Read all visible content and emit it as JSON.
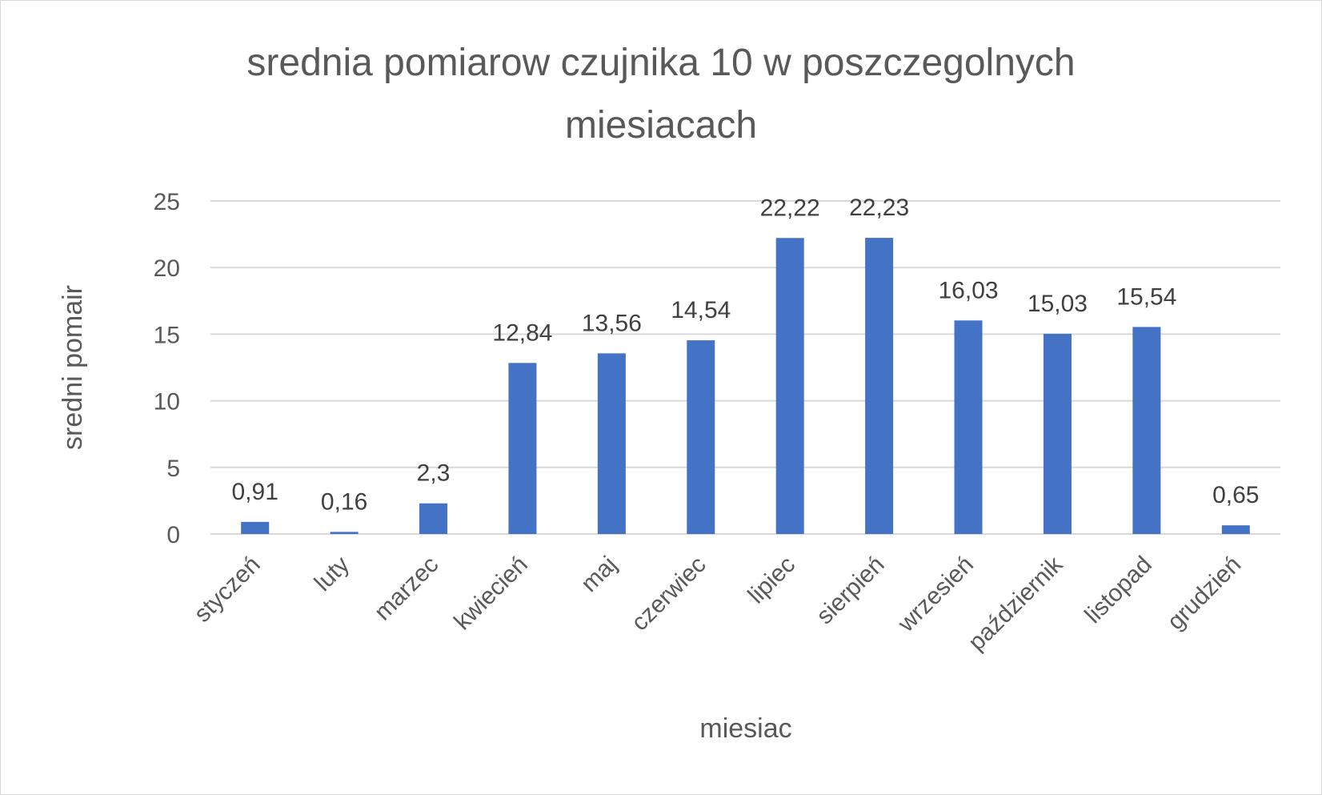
{
  "chart_data": {
    "type": "bar",
    "title": "srednia pomiarow czujnika 10 w poszczegolnych miesiacach",
    "title_lines": [
      "srednia pomiarow czujnika 10 w poszczegolnych",
      "miesiacach"
    ],
    "xlabel": "miesiac",
    "ylabel": "sredni pomair",
    "categories": [
      "styczeń",
      "luty",
      "marzec",
      "kwiecień",
      "maj",
      "czerwiec",
      "lipiec",
      "sierpień",
      "wrzesień",
      "październik",
      "listopad",
      "grudzień"
    ],
    "values": [
      0.91,
      0.16,
      2.3,
      12.84,
      13.56,
      14.54,
      22.22,
      22.23,
      16.03,
      15.03,
      15.54,
      0.65
    ],
    "data_labels": [
      "0,91",
      "0,16",
      "2,3",
      "12,84",
      "13,56",
      "14,54",
      "22,22",
      "22,23",
      "16,03",
      "15,03",
      "15,54",
      "0,65"
    ],
    "ylim": [
      0,
      25
    ],
    "yticks": [
      0,
      5,
      10,
      15,
      20,
      25
    ],
    "grid": true,
    "legend": "none",
    "bar_color": "#4472c4",
    "grid_color": "#d9d9d9"
  }
}
